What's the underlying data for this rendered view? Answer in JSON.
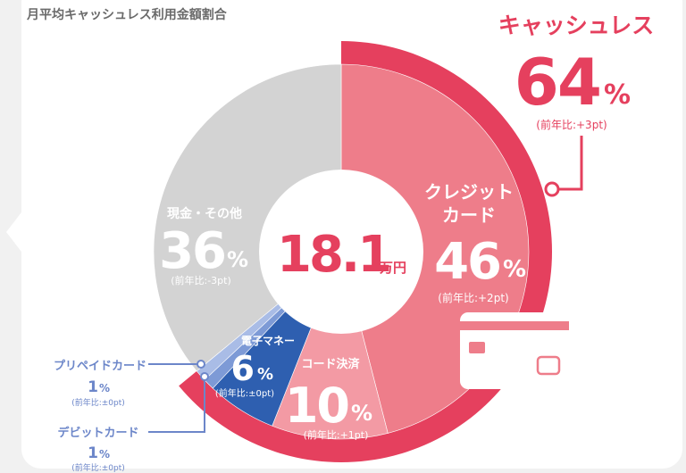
{
  "title": "月平均キャッシュレス利用金額割合",
  "center": {
    "amount": "18.1",
    "unit": "万円"
  },
  "cashless": {
    "label": "キャッシュレス",
    "value": "64",
    "pct": "%",
    "change": "(前年比:+3pt)"
  },
  "colors": {
    "cash": "#d3d3d3",
    "credit": "#ee7d8a",
    "code": "#f39aa4",
    "emoney": "#2e5fb0",
    "prepaid": "#7d9ad6",
    "debit": "#a9bce6",
    "cashless_ring": "#e5405e",
    "accent_text": "#e5405e",
    "legend_blue": "#6c86c9"
  },
  "chart_data": {
    "type": "pie",
    "title": "月平均キャッシュレス利用金額割合",
    "categories": [
      "クレジットカード",
      "コード決済",
      "電子マネー",
      "プリペイドカード",
      "デビットカード",
      "現金・その他"
    ],
    "values": [
      46,
      10,
      6,
      1,
      1,
      36
    ],
    "changes": [
      "(前年比:+2pt)",
      "(前年比:+1pt)",
      "(前年比:±0pt)",
      "(前年比:±0pt)",
      "(前年比:±0pt)",
      "(前年比:-3pt)"
    ],
    "colors": [
      "#ee7d8a",
      "#f39aa4",
      "#2e5fb0",
      "#7d9ad6",
      "#a9bce6",
      "#d3d3d3"
    ],
    "start_angle_deg": 0,
    "direction": "clockwise",
    "legend": "none",
    "grid": false
  },
  "slices": {
    "credit": {
      "label1": "クレジット",
      "label2": "カード",
      "value": "46",
      "pct": "%",
      "change": "(前年比:+2pt)"
    },
    "code": {
      "label": "コード決済",
      "value": "10",
      "pct": "%",
      "change": "(前年比:+1pt)"
    },
    "emoney": {
      "label": "電子マネー",
      "value": "6",
      "pct": "%",
      "change": "(前年比:±0pt)"
    },
    "prepaid": {
      "label": "プリペイドカード",
      "value": "1",
      "pct": "%",
      "change": "(前年比:±0pt)"
    },
    "debit": {
      "label": "デビットカード",
      "value": "1",
      "pct": "%",
      "change": "(前年比:±0pt)"
    },
    "cash": {
      "label": "現金・その他",
      "value": "36",
      "pct": "%",
      "change": "(前年比:-3pt)"
    }
  }
}
